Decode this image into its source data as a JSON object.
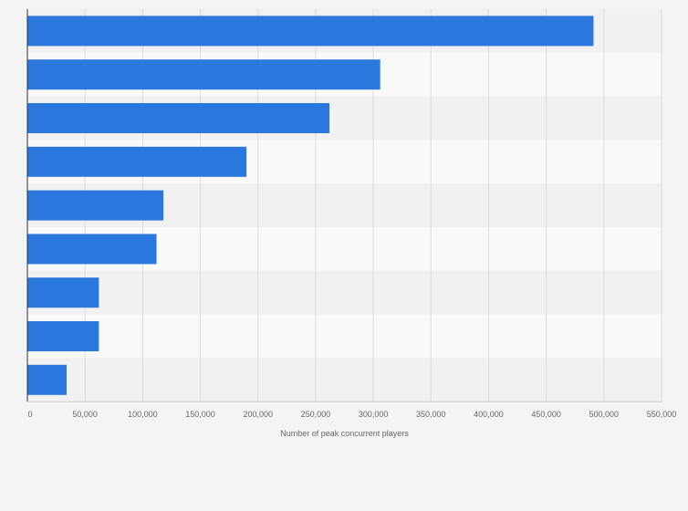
{
  "chart_data": {
    "type": "bar",
    "orientation": "horizontal",
    "title": "",
    "xlabel": "Number of peak concurrent players",
    "ylabel": "",
    "xlim": [
      0,
      550000
    ],
    "ticks": [
      0,
      50000,
      100000,
      150000,
      200000,
      250000,
      300000,
      350000,
      400000,
      450000,
      500000,
      550000
    ],
    "tick_labels": [
      "0",
      "50,000",
      "100,000",
      "150,000",
      "200,000",
      "250,000",
      "300,000",
      "350,000",
      "400,000",
      "450,000",
      "500,000",
      "550,000"
    ],
    "categories": [
      "",
      "",
      "",
      "",
      "",
      "",
      "",
      "",
      ""
    ],
    "values": [
      491000,
      306000,
      262000,
      190000,
      118000,
      112000,
      62000,
      62000,
      34000
    ],
    "grid": true,
    "colors": {
      "bar": "#2a77dd",
      "band_dark": "#f1f1f1",
      "band_light": "#f9f9f9",
      "grid": "#dcdcdc",
      "axis": "#333333",
      "text": "#666666"
    }
  }
}
